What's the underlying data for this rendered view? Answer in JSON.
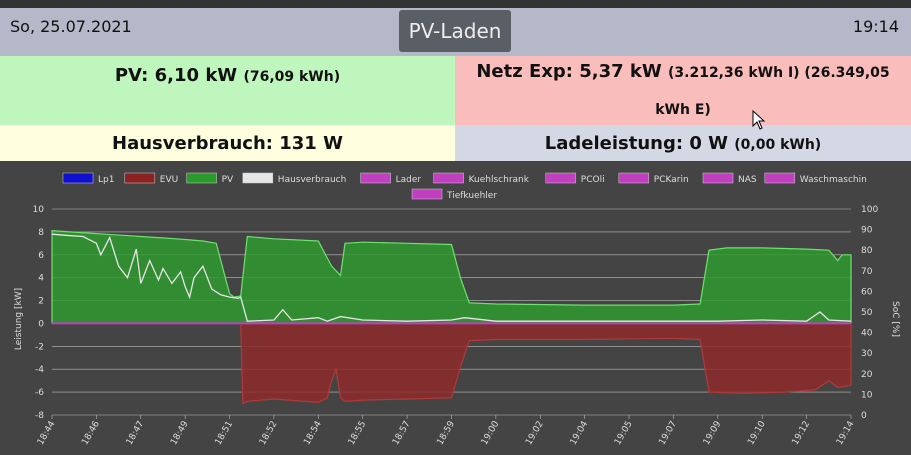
{
  "header": {
    "date": "So, 25.07.2021",
    "title": "PV-Laden",
    "time": "19:14"
  },
  "tiles": {
    "pv_main": "PV: 6,10 kW",
    "pv_sub": "(76,09 kWh)",
    "netz_main": "Netz Exp: 5,37 kW",
    "netz_sub": "(3.212,36 kWh I) (26.349,05 kWh E)",
    "haus_main": "Hausverbrauch: 131 W",
    "lade_main": "Ladeleistung: 0 W",
    "lade_sub": "(0,00 kWh)"
  },
  "colors": {
    "pv_tile": "#bff6bd",
    "netz_tile": "#f9bdbb",
    "haus_tile": "#fefede",
    "lade_tile": "#d3d8e4",
    "header": "#b4b8c8"
  },
  "chart_data": {
    "type": "area",
    "x": [
      "18:44",
      "18:46",
      "18:47",
      "18:49",
      "18:51",
      "18:52",
      "18:54",
      "18:55",
      "18:57",
      "18:59",
      "19:00",
      "19:02",
      "19:04",
      "19:05",
      "19:07",
      "19:09",
      "19:10",
      "19:12",
      "19:14"
    ],
    "ylabel": "Leistung [kW]",
    "y2label": "SoC [%]",
    "ylim": [
      -8,
      10
    ],
    "y2lim": [
      0,
      100
    ],
    "yticks": [
      10,
      8,
      6,
      4,
      2,
      0,
      -2,
      -4,
      -6,
      -8
    ],
    "y2ticks": [
      100,
      90,
      80,
      70,
      60,
      50,
      40,
      30,
      20,
      10,
      0
    ],
    "legend_position": "top",
    "legend": [
      {
        "name": "Lp1",
        "color": "#1010d0"
      },
      {
        "name": "EVU",
        "color": "#8b2222"
      },
      {
        "name": "PV",
        "color": "#2a9a2a"
      },
      {
        "name": "Hausverbrauch",
        "color": "#e6e6e6"
      },
      {
        "name": "Lader",
        "color": "#c040c0"
      },
      {
        "name": "Kuehlschrank",
        "color": "#c040c0"
      },
      {
        "name": "PCOli",
        "color": "#c040c0"
      },
      {
        "name": "PCKarin",
        "color": "#c040c0"
      },
      {
        "name": "NAS",
        "color": "#c040c0"
      },
      {
        "name": "Waschmaschin",
        "color": "#c040c0"
      },
      {
        "name": "Tiefkuehler",
        "color": "#c040c0"
      }
    ],
    "series": [
      {
        "name": "PV",
        "color": "#2a9a2a",
        "x": [
          0,
          0.4,
          0.8,
          1.2,
          1.6,
          2.0,
          2.4,
          2.8,
          3.1,
          3.4,
          3.7,
          4.0,
          4.1,
          4.25,
          4.4,
          5.0,
          6.0,
          6.3,
          6.5,
          6.6,
          7.0,
          8.0,
          9.0,
          9.2,
          9.4,
          10.0,
          12.0,
          14.0,
          14.6,
          14.8,
          15.2,
          16.0,
          17.0,
          17.5,
          17.7,
          17.8,
          18.0
        ],
        "values": [
          8.1,
          8.0,
          7.9,
          7.8,
          7.7,
          7.6,
          7.5,
          7.4,
          7.3,
          7.2,
          7.0,
          2.6,
          2.3,
          2.4,
          7.6,
          7.4,
          7.2,
          5.0,
          4.2,
          7.0,
          7.1,
          7.0,
          6.9,
          4.0,
          1.8,
          1.7,
          1.6,
          1.6,
          1.7,
          6.4,
          6.6,
          6.6,
          6.5,
          6.4,
          5.5,
          6.0,
          6.0
        ]
      },
      {
        "name": "EVU",
        "color": "#8b2222",
        "x": [
          0,
          3.9,
          4.1,
          4.25,
          4.3,
          4.4,
          5.0,
          6.0,
          6.2,
          6.3,
          6.4,
          6.5,
          6.6,
          7.0,
          8.0,
          9.0,
          9.2,
          9.4,
          10.0,
          12.0,
          14.0,
          14.6,
          14.8,
          15.5,
          16.5,
          17.2,
          17.5,
          17.7,
          18.0
        ],
        "values": [
          0,
          0,
          0,
          0,
          -7.0,
          -6.8,
          -6.6,
          -6.9,
          -6.5,
          -5.0,
          -4.0,
          -6.5,
          -6.8,
          -6.7,
          -6.6,
          -6.5,
          -3.8,
          -1.5,
          -1.4,
          -1.4,
          -1.3,
          -1.4,
          -6.0,
          -6.1,
          -6.0,
          -5.8,
          -5.0,
          -5.6,
          -5.4
        ]
      },
      {
        "name": "Hausverbrauch",
        "color": "#e6e6e6",
        "x": [
          0,
          0.3,
          0.7,
          1.0,
          1.1,
          1.3,
          1.5,
          1.7,
          1.9,
          2.0,
          2.2,
          2.4,
          2.5,
          2.7,
          2.9,
          3.0,
          3.1,
          3.2,
          3.4,
          3.6,
          3.8,
          4.0,
          4.2,
          4.25,
          4.4,
          5.0,
          5.2,
          5.4,
          6.0,
          6.2,
          6.5,
          7.0,
          8.0,
          9.0,
          9.3,
          10.0,
          12.0,
          14.0,
          15.0,
          16.0,
          17.0,
          17.3,
          17.5,
          18.0
        ],
        "values": [
          7.8,
          7.7,
          7.6,
          7.0,
          6.0,
          7.5,
          5.0,
          4.0,
          6.5,
          3.5,
          5.5,
          3.8,
          4.8,
          3.5,
          4.5,
          3.2,
          2.3,
          4.0,
          5.0,
          3.0,
          2.5,
          2.3,
          2.2,
          2.3,
          0.2,
          0.3,
          1.2,
          0.3,
          0.5,
          0.2,
          0.6,
          0.3,
          0.2,
          0.3,
          0.5,
          0.2,
          0.2,
          0.2,
          0.2,
          0.3,
          0.2,
          1.0,
          0.3,
          0.2
        ]
      },
      {
        "name": "Lp1",
        "color": "#1010d0",
        "x": [
          0,
          18
        ],
        "values": [
          0,
          0
        ]
      },
      {
        "name": "Lader",
        "color": "#c040c0",
        "x": [
          0,
          18
        ],
        "values": [
          0,
          0
        ]
      }
    ]
  }
}
